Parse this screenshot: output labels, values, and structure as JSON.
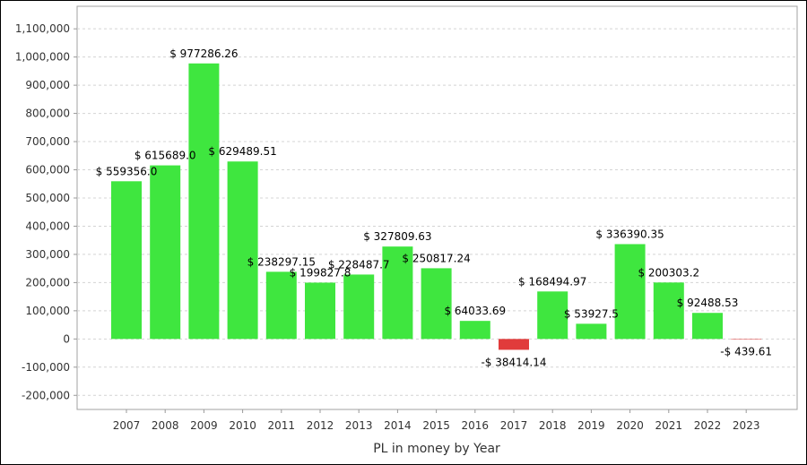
{
  "chart_data": {
    "type": "bar",
    "title": "",
    "xlabel": "PL in money by Year",
    "ylabel": "",
    "ylim": [
      -250000,
      1180000
    ],
    "grid": true,
    "y_ticks": [
      -200000,
      -100000,
      0,
      100000,
      200000,
      300000,
      400000,
      500000,
      600000,
      700000,
      800000,
      900000,
      1000000,
      1100000
    ],
    "y_tick_labels": [
      "-200,000",
      "-100,000",
      "0",
      "100,000",
      "200,000",
      "300,000",
      "400,000",
      "500,000",
      "600,000",
      "700,000",
      "800,000",
      "900,000",
      "1,000,000",
      "1,100,000"
    ],
    "categories": [
      "2007",
      "2008",
      "2009",
      "2010",
      "2011",
      "2012",
      "2013",
      "2014",
      "2015",
      "2016",
      "2017",
      "2018",
      "2019",
      "2020",
      "2021",
      "2022",
      "2023"
    ],
    "values": [
      559356.0,
      615689.0,
      977286.26,
      629489.51,
      238297.15,
      199827.8,
      228487.7,
      327809.63,
      250817.24,
      64033.69,
      -38414.14,
      168494.97,
      53927.5,
      336390.35,
      200303.2,
      92488.53,
      -439.61
    ],
    "data_labels": [
      "$ 559356.0",
      "$ 615689.0",
      "$ 977286.26",
      "$ 629489.51",
      "$ 238297.15",
      "$ 199827.8",
      "$ 228487.7",
      "$ 327809.63",
      "$ 250817.24",
      "$ 64033.69",
      "-$ 38414.14",
      "$ 168494.97",
      "$ 53927.5",
      "$ 336390.35",
      "$ 200303.2",
      "$ 92488.53",
      "-$ 439.61"
    ],
    "colors": {
      "positive": "#3fe63f",
      "negative": "#e13b3b",
      "grid": "#d4d4d4",
      "axis": "#999999"
    }
  }
}
